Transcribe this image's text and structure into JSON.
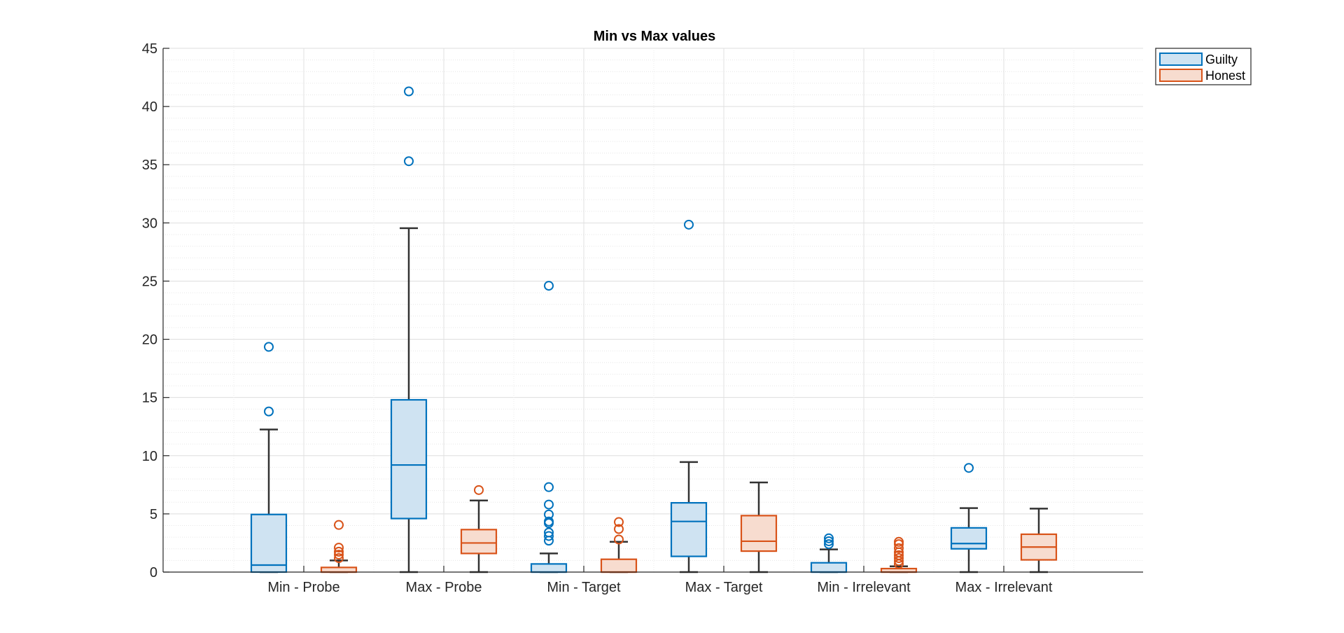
{
  "chart_data": {
    "type": "boxplot",
    "title": "Min vs Max values",
    "xlabel": "",
    "ylabel": "",
    "ylim": [
      0,
      45
    ],
    "yticks": [
      0,
      5,
      10,
      15,
      20,
      25,
      30,
      35,
      40,
      45
    ],
    "minor_y_step": 1,
    "grid": true,
    "legend_position": "top-right, outside plot",
    "categories": [
      "Min - Probe",
      "Max - Probe",
      "Min - Target",
      "Max - Target",
      "Min - Irrelevant",
      "Max - Irrelevant"
    ],
    "series": [
      {
        "name": "Guilty",
        "color": "#0072BD",
        "fill": "#CFE3F2",
        "boxes": [
          {
            "whisker_low": 0,
            "q1": 0,
            "median": 0.6,
            "q3": 4.95,
            "whisker_high": 12.25,
            "outliers": [
              13.8,
              19.35
            ]
          },
          {
            "whisker_low": 0,
            "q1": 4.6,
            "median": 9.2,
            "q3": 14.8,
            "whisker_high": 29.55,
            "outliers": [
              35.3,
              41.3
            ]
          },
          {
            "whisker_low": 0,
            "q1": 0,
            "median": 0,
            "q3": 0.7,
            "whisker_high": 1.6,
            "outliers": [
              2.7,
              3.1,
              3.4,
              4.2,
              4.35,
              4.95,
              5.8,
              7.3,
              24.6
            ]
          },
          {
            "whisker_low": 0,
            "q1": 1.35,
            "median": 4.35,
            "q3": 5.95,
            "whisker_high": 9.45,
            "outliers": [
              29.85
            ]
          },
          {
            "whisker_low": 0,
            "q1": 0,
            "median": 0,
            "q3": 0.8,
            "whisker_high": 1.95,
            "outliers": [
              2.4,
              2.65,
              2.9
            ]
          },
          {
            "whisker_low": 0,
            "q1": 2.0,
            "median": 2.45,
            "q3": 3.8,
            "whisker_high": 5.5,
            "outliers": [
              8.95
            ]
          }
        ]
      },
      {
        "name": "Honest",
        "color": "#D95319",
        "fill": "#F7DCCF",
        "boxes": [
          {
            "whisker_low": 0,
            "q1": 0,
            "median": 0,
            "q3": 0.4,
            "whisker_high": 1.0,
            "outliers": [
              1.2,
              1.5,
              1.75,
              2.1,
              4.05
            ]
          },
          {
            "whisker_low": 0,
            "q1": 1.6,
            "median": 2.5,
            "q3": 3.65,
            "whisker_high": 6.15,
            "outliers": [
              7.05
            ]
          },
          {
            "whisker_low": 0,
            "q1": 0,
            "median": 0,
            "q3": 1.1,
            "whisker_high": 2.6,
            "outliers": [
              2.8,
              3.7,
              4.3
            ]
          },
          {
            "whisker_low": 0,
            "q1": 1.8,
            "median": 2.65,
            "q3": 4.85,
            "whisker_high": 7.7,
            "outliers": []
          },
          {
            "whisker_low": 0,
            "q1": 0,
            "median": 0,
            "q3": 0.3,
            "whisker_high": 0.5,
            "outliers": [
              0.7,
              0.95,
              1.2,
              1.45,
              1.7,
              2.05,
              2.4,
              2.6
            ]
          },
          {
            "whisker_low": 0,
            "q1": 1.05,
            "median": 2.15,
            "q3": 3.25,
            "whisker_high": 5.45,
            "outliers": []
          }
        ]
      }
    ]
  }
}
